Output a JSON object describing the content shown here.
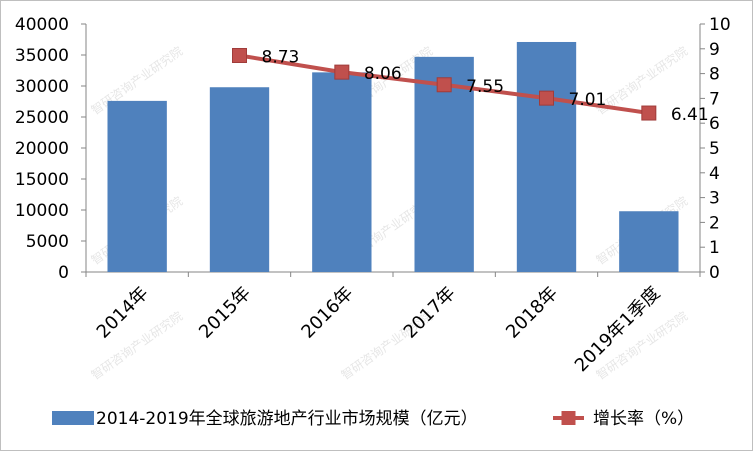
{
  "chart_data": {
    "type": "bar",
    "categories": [
      "2014年",
      "2015年",
      "2016年",
      "2017年",
      "2018年",
      "2019年1季度"
    ],
    "series": [
      {
        "name": "2014-2019年全球旅游地产行业市场规模（亿元）",
        "type": "bar",
        "axis": "left",
        "color": "#4f81bd",
        "values": [
          27600,
          29800,
          32200,
          34700,
          37100,
          9800
        ]
      },
      {
        "name": "增长率（%）",
        "type": "line",
        "axis": "right",
        "color": "#c0504d",
        "values": [
          null,
          8.73,
          8.06,
          7.55,
          7.01,
          6.41
        ],
        "data_labels": [
          "",
          "8.73",
          "8.06",
          "7.55",
          "7.01",
          "6.41"
        ]
      }
    ],
    "y_left": {
      "ylim": [
        0,
        40000
      ],
      "ticks": [
        "0",
        "5000",
        "10000",
        "15000",
        "20000",
        "25000",
        "30000",
        "35000",
        "40000"
      ]
    },
    "y_right": {
      "ylim": [
        0,
        10
      ],
      "ticks": [
        "0",
        "1",
        "2",
        "3",
        "4",
        "5",
        "6",
        "7",
        "8",
        "9",
        "10"
      ]
    },
    "grid": false,
    "legend": "bottom",
    "watermark": "智研咨询产业研究院"
  }
}
